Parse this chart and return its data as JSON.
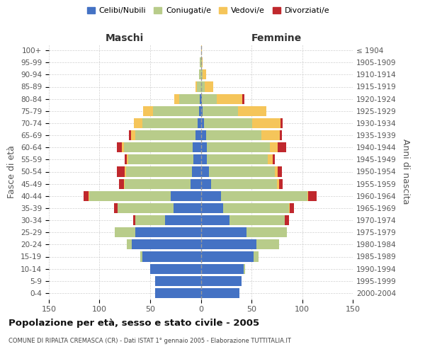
{
  "age_groups": [
    "0-4",
    "5-9",
    "10-14",
    "15-19",
    "20-24",
    "25-29",
    "30-34",
    "35-39",
    "40-44",
    "45-49",
    "50-54",
    "55-59",
    "60-64",
    "65-69",
    "70-74",
    "75-79",
    "80-84",
    "85-89",
    "90-94",
    "95-99",
    "100+"
  ],
  "birth_years": [
    "2000-2004",
    "1995-1999",
    "1990-1994",
    "1985-1989",
    "1980-1984",
    "1975-1979",
    "1970-1974",
    "1965-1969",
    "1960-1964",
    "1955-1959",
    "1950-1954",
    "1945-1949",
    "1940-1944",
    "1935-1939",
    "1930-1934",
    "1925-1929",
    "1920-1924",
    "1915-1919",
    "1910-1914",
    "1905-1909",
    "≤ 1904"
  ],
  "males": {
    "celibi": [
      45,
      45,
      50,
      58,
      68,
      65,
      35,
      27,
      30,
      10,
      9,
      7,
      8,
      5,
      3,
      2,
      1,
      0,
      0,
      0,
      0
    ],
    "coniugati": [
      0,
      0,
      0,
      2,
      5,
      20,
      30,
      55,
      80,
      65,
      65,
      65,
      68,
      60,
      55,
      45,
      20,
      4,
      2,
      1,
      0
    ],
    "vedovi": [
      0,
      0,
      0,
      0,
      0,
      0,
      0,
      0,
      1,
      1,
      1,
      1,
      2,
      4,
      8,
      10,
      5,
      1,
      0,
      0,
      0
    ],
    "divorziati": [
      0,
      0,
      0,
      0,
      0,
      0,
      2,
      4,
      5,
      5,
      8,
      2,
      5,
      2,
      0,
      0,
      0,
      0,
      0,
      0,
      0
    ]
  },
  "females": {
    "nubili": [
      38,
      40,
      42,
      52,
      55,
      45,
      28,
      22,
      20,
      10,
      8,
      6,
      6,
      5,
      3,
      2,
      1,
      0,
      0,
      0,
      0
    ],
    "coniugate": [
      0,
      0,
      2,
      5,
      22,
      40,
      55,
      65,
      85,
      65,
      65,
      60,
      62,
      55,
      48,
      35,
      15,
      4,
      2,
      1,
      0
    ],
    "vedove": [
      0,
      0,
      0,
      0,
      0,
      0,
      0,
      1,
      1,
      2,
      3,
      5,
      8,
      18,
      28,
      28,
      25,
      8,
      3,
      1,
      1
    ],
    "divorziate": [
      0,
      0,
      0,
      0,
      0,
      0,
      4,
      4,
      8,
      4,
      4,
      2,
      8,
      2,
      2,
      0,
      2,
      0,
      0,
      0,
      0
    ]
  },
  "colors": {
    "celibi": "#4472c4",
    "coniugati": "#b8cc8a",
    "vedovi": "#f5c55a",
    "divorziati": "#c0282d"
  },
  "title": "Popolazione per età, sesso e stato civile - 2005",
  "subtitle": "COMUNE DI RIPALTA CREMASCA (CR) - Dati ISTAT 1° gennaio 2005 - Elaborazione TUTTITALIA.IT",
  "xlabel_left": "Maschi",
  "xlabel_right": "Femmine",
  "ylabel_left": "Fasce di età",
  "ylabel_right": "Anni di nascita",
  "xlim": 150,
  "bg_color": "#ffffff",
  "grid_color": "#cccccc",
  "legend_labels": [
    "Celibi/Nubili",
    "Coniugati/e",
    "Vedovi/e",
    "Divorziati/e"
  ]
}
